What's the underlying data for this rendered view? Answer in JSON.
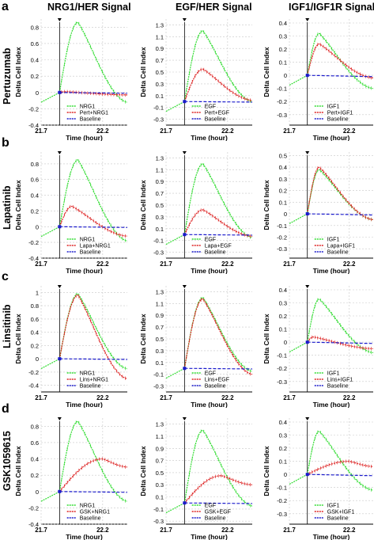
{
  "headers": [
    "NRG1/HER Signal",
    "EGF/HER Signal",
    "IGF1/IGF1R Signal"
  ],
  "rows": [
    {
      "letter": "a",
      "drug": "Pertuzumab"
    },
    {
      "letter": "b",
      "drug": "Lapatinib"
    },
    {
      "letter": "c",
      "drug": "Linsitinib"
    },
    {
      "letter": "d",
      "drug": "GSK1059615"
    }
  ],
  "colors": {
    "growth": "#33dd33",
    "treated": "#dd2222",
    "baseline": "#1a1acc"
  },
  "chart_data": [
    {
      "type": "line",
      "id": "a1",
      "xlabel": "Time (hour)",
      "ylabel": "Delta Cell Index",
      "ylim": [
        -0.4,
        0.9
      ],
      "yticks": [
        -0.4,
        -0.2,
        0,
        0.2,
        0.4,
        0.6,
        0.8
      ],
      "xlim": [
        21.7,
        22.4
      ],
      "xticks": [
        21.7,
        22.2
      ],
      "peak": [
        0.86,
        0.01
      ],
      "peak_t": [
        22.0,
        21.9
      ],
      "end": [
        -0.12,
        -0.03
      ],
      "legend": [
        "NRG1",
        "Pert+NRG1",
        "Baseline"
      ]
    },
    {
      "type": "line",
      "id": "a2",
      "xlabel": "Time (hour)",
      "ylabel": "Delta Cell Index",
      "ylim": [
        -0.4,
        1.4
      ],
      "yticks": [
        -0.3,
        -0.1,
        0.1,
        0.3,
        0.5,
        0.7,
        0.9,
        1.1,
        1.3
      ],
      "xlim": [
        21.7,
        22.4
      ],
      "xticks": [
        21.7,
        22.2
      ],
      "peak": [
        1.2,
        0.55
      ],
      "peak_t": [
        22.0,
        22.0
      ],
      "end": [
        0.0,
        0.02
      ],
      "legend": [
        "EGF",
        "Pert+EGF",
        "Baseline"
      ]
    },
    {
      "type": "line",
      "id": "a3",
      "xlabel": "Time (hour)",
      "ylabel": "Delta Cell Index",
      "ylim": [
        -0.38,
        0.43
      ],
      "yticks": [
        -0.3,
        -0.2,
        -0.1,
        0,
        0.1,
        0.2,
        0.3,
        0.4
      ],
      "xlim": [
        21.7,
        22.4
      ],
      "xticks": [
        21.7,
        22.2
      ],
      "peak": [
        0.32,
        0.24
      ],
      "peak_t": [
        21.95,
        21.95
      ],
      "end": [
        -0.1,
        -0.02
      ],
      "legend": [
        "IGF1",
        "Pert+IGF1",
        "Baseline"
      ]
    },
    {
      "type": "line",
      "id": "b1",
      "xlabel": "Time (hour)",
      "ylabel": "Delta Cell Index",
      "ylim": [
        -0.4,
        0.95
      ],
      "yticks": [
        -0.4,
        -0.2,
        0,
        0.2,
        0.4,
        0.6,
        0.8
      ],
      "xlim": [
        21.7,
        22.4
      ],
      "xticks": [
        21.7,
        22.2
      ],
      "peak": [
        0.85,
        0.26
      ],
      "peak_t": [
        22.0,
        21.95
      ],
      "end": [
        -0.18,
        -0.12
      ],
      "legend": [
        "NRG1",
        "Lapa+NRG1",
        "Baseline"
      ]
    },
    {
      "type": "line",
      "id": "b2",
      "xlabel": "Time (hour)",
      "ylabel": "Delta Cell Index",
      "ylim": [
        -0.4,
        1.4
      ],
      "yticks": [
        -0.3,
        -0.1,
        0.1,
        0.3,
        0.5,
        0.7,
        0.9,
        1.1,
        1.3
      ],
      "xlim": [
        21.7,
        22.4
      ],
      "xticks": [
        21.7,
        22.2
      ],
      "peak": [
        1.2,
        0.42
      ],
      "peak_t": [
        22.0,
        22.0
      ],
      "end": [
        -0.05,
        -0.03
      ],
      "legend": [
        "EGF",
        "Lapa+EGF",
        "Baseline"
      ]
    },
    {
      "type": "line",
      "id": "b3",
      "xlabel": "Time (hour)",
      "ylabel": "Delta Cell Index",
      "ylim": [
        -0.38,
        0.53
      ],
      "yticks": [
        -0.3,
        -0.2,
        -0.1,
        0,
        0.1,
        0.2,
        0.3,
        0.4,
        0.5
      ],
      "xlim": [
        21.7,
        22.4
      ],
      "xticks": [
        21.7,
        22.2
      ],
      "peak": [
        0.38,
        0.4
      ],
      "peak_t": [
        21.95,
        21.95
      ],
      "end": [
        -0.05,
        -0.05
      ],
      "legend": [
        "IGF1",
        "Lapa+IGF1",
        "Baseline"
      ]
    },
    {
      "type": "line",
      "id": "c1",
      "xlabel": "Time (hour)",
      "ylabel": "Delta Cell Index",
      "ylim": [
        -0.5,
        1.1
      ],
      "yticks": [
        -0.4,
        -0.2,
        0,
        0.2,
        0.4,
        0.6,
        0.8,
        1
      ],
      "xlim": [
        21.7,
        22.4
      ],
      "xticks": [
        21.7,
        22.2
      ],
      "peak": [
        0.98,
        0.96
      ],
      "peak_t": [
        22.0,
        22.0
      ],
      "end": [
        -0.15,
        -0.3
      ],
      "legend": [
        "NRG1",
        "Lins+NRG1",
        "Baseline"
      ]
    },
    {
      "type": "line",
      "id": "c2",
      "xlabel": "Time (hour)",
      "ylabel": "Delta Cell Index",
      "ylim": [
        -0.4,
        1.4
      ],
      "yticks": [
        -0.3,
        -0.1,
        0.1,
        0.3,
        0.5,
        0.7,
        0.9,
        1.1,
        1.3
      ],
      "xlim": [
        21.7,
        22.4
      ],
      "xticks": [
        21.7,
        22.2
      ],
      "peak": [
        1.2,
        1.18
      ],
      "peak_t": [
        22.0,
        22.0
      ],
      "end": [
        -0.05,
        -0.1
      ],
      "legend": [
        "EGF",
        "Lins+EGF",
        "Baseline"
      ]
    },
    {
      "type": "line",
      "id": "c3",
      "xlabel": "Time (hour)",
      "ylabel": "Delta Cell Index",
      "ylim": [
        -0.38,
        0.43
      ],
      "yticks": [
        -0.3,
        -0.2,
        -0.1,
        0,
        0.1,
        0.2,
        0.3,
        0.4
      ],
      "xlim": [
        21.7,
        22.4
      ],
      "xticks": [
        21.7,
        22.2
      ],
      "peak": [
        0.33,
        0.04
      ],
      "peak_t": [
        21.95,
        21.9
      ],
      "end": [
        -0.08,
        -0.05
      ],
      "legend": [
        "IGF1",
        "Lins+IGF1",
        "Baseline"
      ]
    },
    {
      "type": "line",
      "id": "d1",
      "xlabel": "Time (hour)",
      "ylabel": "Delta Cell Index",
      "ylim": [
        -0.4,
        0.9
      ],
      "yticks": [
        -0.4,
        -0.2,
        0,
        0.2,
        0.4,
        0.6,
        0.8
      ],
      "xlim": [
        21.7,
        22.4
      ],
      "xticks": [
        21.7,
        22.2
      ],
      "peak": [
        0.86,
        0.4
      ],
      "peak_t": [
        22.0,
        22.2
      ],
      "end": [
        -0.12,
        0.3
      ],
      "legend": [
        "NRG1",
        "GSK+NRG1",
        "Baseline"
      ]
    },
    {
      "type": "line",
      "id": "d2",
      "xlabel": "Time (hour)",
      "ylabel": "Delta Cell Index",
      "ylim": [
        -0.35,
        1.4
      ],
      "yticks": [
        -0.3,
        -0.1,
        0.1,
        0.3,
        0.5,
        0.7,
        0.9,
        1.1,
        1.3
      ],
      "xlim": [
        21.7,
        22.4
      ],
      "xticks": [
        21.7,
        22.2
      ],
      "peak": [
        1.2,
        0.45
      ],
      "peak_t": [
        22.0,
        22.15
      ],
      "end": [
        -0.05,
        0.3
      ],
      "legend": [
        "EGF",
        "GSK+EGF",
        "Baseline"
      ]
    },
    {
      "type": "line",
      "id": "d3",
      "xlabel": "Time (hour)",
      "ylabel": "Delta Cell Index",
      "ylim": [
        -0.38,
        0.43
      ],
      "yticks": [
        -0.3,
        -0.2,
        -0.1,
        0,
        0.1,
        0.2,
        0.3,
        0.4
      ],
      "xlim": [
        21.7,
        22.4
      ],
      "xticks": [
        21.7,
        22.2
      ],
      "peak": [
        0.33,
        0.1
      ],
      "peak_t": [
        21.95,
        22.2
      ],
      "end": [
        -0.12,
        0.06
      ],
      "legend": [
        "IGF1",
        "GSK+IGF1",
        "Baseline"
      ]
    }
  ]
}
